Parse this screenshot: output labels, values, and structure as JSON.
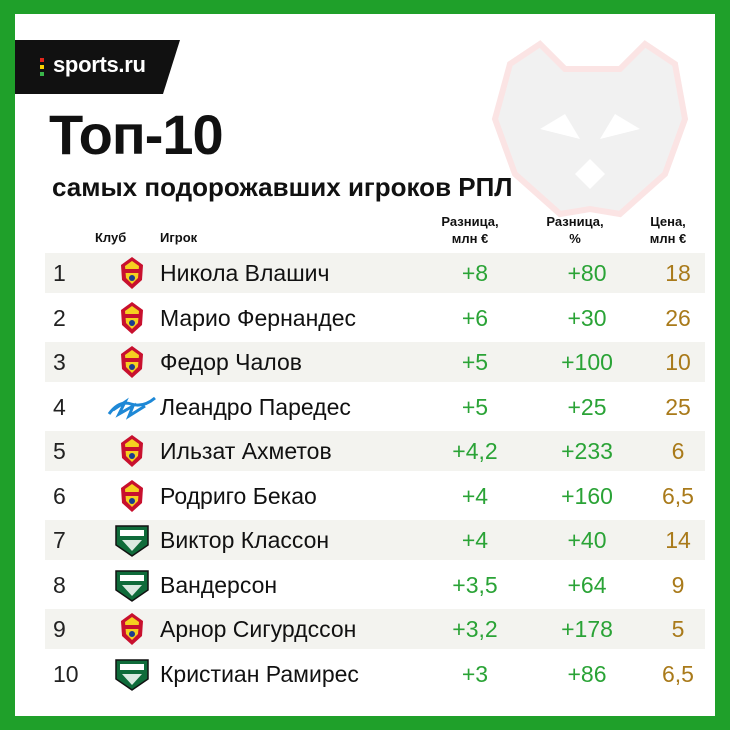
{
  "logo": {
    "text": "sports.ru",
    "dot_colors": [
      "#e2261c",
      "#f8d300",
      "#39b54a"
    ]
  },
  "title": "Топ-10",
  "subtitle": "самых подорожавших игроков РПЛ",
  "headers": {
    "club": "Клуб",
    "player": "Игрок",
    "diff_eur_l1": "Разница,",
    "diff_eur_l2": "млн €",
    "diff_pct_l1": "Разница,",
    "diff_pct_l2": "%",
    "price_l1": "Цена,",
    "price_l2": "млн €"
  },
  "colors": {
    "background": "#1fa02a",
    "positive": "#2aa336",
    "price": "#a97a1a"
  },
  "rows": [
    {
      "rank": "1",
      "club_icon": "cska-logo-icon",
      "player": "Никола Влашич",
      "diff_eur": "+8",
      "diff_pct": "+80",
      "price": "18"
    },
    {
      "rank": "2",
      "club_icon": "cska-logo-icon",
      "player": "Марио Фернандес",
      "diff_eur": "+6",
      "diff_pct": "+30",
      "price": "26"
    },
    {
      "rank": "3",
      "club_icon": "cska-logo-icon",
      "player": "Федор Чалов",
      "diff_eur": "+5",
      "diff_pct": "+100",
      "price": "10"
    },
    {
      "rank": "4",
      "club_icon": "zenit-logo-icon",
      "player": "Леандро Паредес",
      "diff_eur": "+5",
      "diff_pct": "+25",
      "price": "25"
    },
    {
      "rank": "5",
      "club_icon": "cska-logo-icon",
      "player": "Ильзат Ахметов",
      "diff_eur": "+4,2",
      "diff_pct": "+233",
      "price": "6"
    },
    {
      "rank": "6",
      "club_icon": "cska-logo-icon",
      "player": "Родриго Бекао",
      "diff_eur": "+4",
      "diff_pct": "+160",
      "price": "6,5"
    },
    {
      "rank": "7",
      "club_icon": "krasnodar-logo-icon",
      "player": "Виктор Классон",
      "diff_eur": "+4",
      "diff_pct": "+40",
      "price": "14"
    },
    {
      "rank": "8",
      "club_icon": "krasnodar-logo-icon",
      "player": "Вандерсон",
      "diff_eur": "+3,5",
      "diff_pct": "+64",
      "price": "9"
    },
    {
      "rank": "9",
      "club_icon": "cska-logo-icon",
      "player": "Арнор Сигурдссон",
      "diff_eur": "+3,2",
      "diff_pct": "+178",
      "price": "5"
    },
    {
      "rank": "10",
      "club_icon": "krasnodar-logo-icon",
      "player": "Кристиан Рамирес",
      "diff_eur": "+3",
      "diff_pct": "+86",
      "price": "6,5"
    }
  ]
}
